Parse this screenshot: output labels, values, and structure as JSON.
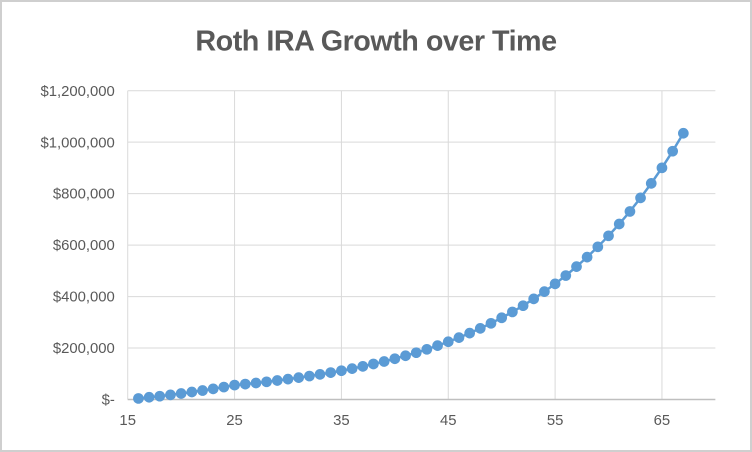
{
  "style": {
    "accent_color": "#5B9BD5",
    "gridline_color": "#D9D9D9",
    "axis_line_color": "#BFBFBF",
    "text_color": "#595959",
    "background_color": "#FFFFFF",
    "border_color": "#CFCFCF"
  },
  "chart_data": {
    "type": "scatter",
    "title": "Roth IRA Growth over Time",
    "xlabel": "",
    "ylabel": "",
    "grid": true,
    "legend": "none",
    "marker": "circle",
    "x_range": [
      15,
      70
    ],
    "y_range": [
      0,
      1200000
    ],
    "x_ticks": [
      {
        "label": "15",
        "value": 15
      },
      {
        "label": "25",
        "value": 25
      },
      {
        "label": "35",
        "value": 35
      },
      {
        "label": "45",
        "value": 45
      },
      {
        "label": "55",
        "value": 55
      },
      {
        "label": "65",
        "value": 65
      }
    ],
    "y_ticks": [
      {
        "label": "$-",
        "value": 0
      },
      {
        "label": "$200,000",
        "value": 200000
      },
      {
        "label": "$400,000",
        "value": 400000
      },
      {
        "label": "$600,000",
        "value": 600000
      },
      {
        "label": "$800,000",
        "value": 800000
      },
      {
        "label": "$1,000,000",
        "value": 1000000
      },
      {
        "label": "$1,200,000",
        "value": 1200000
      }
    ],
    "series": [
      {
        "x": [
          16,
          17,
          18,
          19,
          20,
          21,
          22,
          23,
          24,
          25,
          26,
          27,
          28,
          29,
          30,
          31,
          32,
          33,
          34,
          35,
          36,
          37,
          38,
          39,
          40,
          41,
          42,
          43,
          44,
          45,
          46,
          47,
          48,
          49,
          50,
          51,
          52,
          53,
          54,
          55,
          56,
          57,
          58,
          59,
          60,
          61,
          62,
          63,
          64,
          65,
          66,
          67
        ],
        "y": [
          4000,
          8288,
          12885,
          17812,
          23095,
          28758,
          34828,
          41336,
          48312,
          55791,
          59808,
          64115,
          68731,
          73680,
          78985,
          84671,
          90768,
          97303,
          104309,
          111819,
          119870,
          128501,
          137753,
          147671,
          158303,
          169701,
          181920,
          195018,
          209059,
          224111,
          240247,
          257545,
          276088,
          295967,
          317276,
          340120,
          364609,
          390861,
          419003,
          449171,
          481511,
          516180,
          553345,
          593186,
          635895,
          681680,
          730761,
          783375,
          839778,
          900242,
          965060,
          1034544
        ]
      }
    ]
  }
}
